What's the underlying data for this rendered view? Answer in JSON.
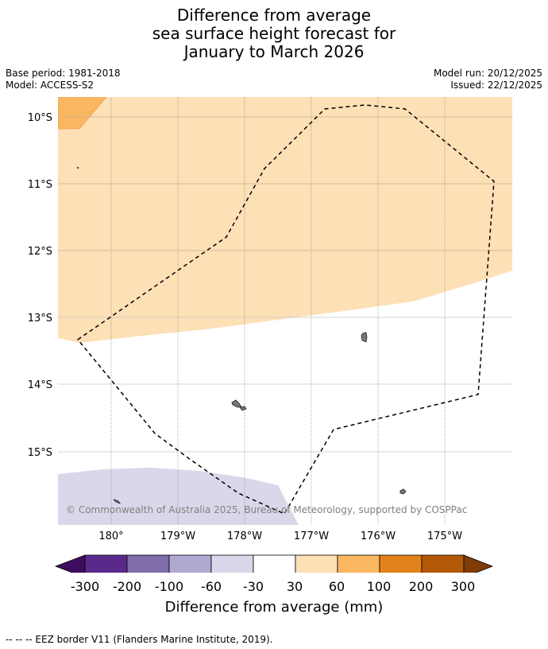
{
  "title": {
    "line1": "Difference from average",
    "line2": "sea surface height forecast for",
    "line3": "January to March 2026"
  },
  "meta": {
    "base_period": "Base period: 1981-2018",
    "model": "Model: ACCESS-S2",
    "model_run": "Model run: 20/12/2025",
    "issued": "Issued: 22/12/2025"
  },
  "map": {
    "lat_labels": [
      "10°S",
      "11°S",
      "12°S",
      "13°S",
      "14°S",
      "15°S"
    ],
    "lon_labels": [
      "180°",
      "179°W",
      "178°W",
      "177°W",
      "176°W",
      "175°W"
    ],
    "copyright": "© Commonwealth of Australia 2025, Bureau of Meteorology, supported by COSPPac"
  },
  "colorbar": {
    "labels": [
      "-300",
      "-200",
      "-100",
      "-60",
      "-30",
      "30",
      "60",
      "100",
      "200",
      "300"
    ],
    "colors": [
      "#3f0d5e",
      "#5a2a8a",
      "#7f6eab",
      "#b0a8d0",
      "#d8d8ea",
      "#ffffff",
      "#fde0b6",
      "#fbb661",
      "#e3821a",
      "#b35806",
      "#7f3b08"
    ],
    "title": "Difference from average (mm)"
  },
  "footnote": "--  --  -- EEZ border V11 (Flanders Marine Institute, 2019)."
}
